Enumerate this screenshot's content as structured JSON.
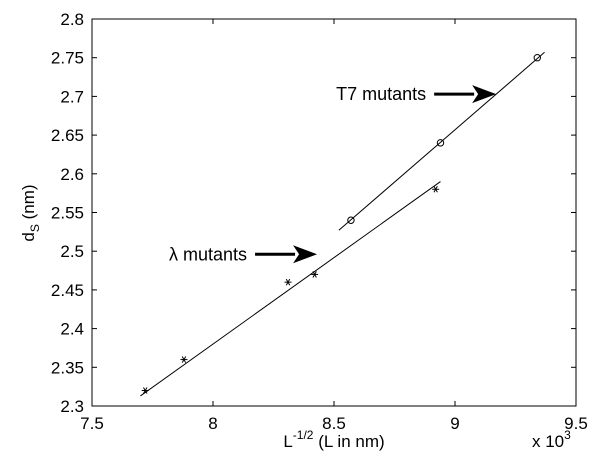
{
  "chart_data": {
    "type": "scatter",
    "xlabel": {
      "base": "L",
      "sup": "-1/2",
      "rest": " (L in nm)"
    },
    "ylabel": {
      "base": "d",
      "sub": "S",
      "rest": " (nm)"
    },
    "x_multiplier": {
      "base": "x 10",
      "sup": "3"
    },
    "xlim": [
      7.5,
      9.5
    ],
    "ylim": [
      2.3,
      2.8
    ],
    "x_ticks": [
      "7.5",
      "8",
      "8.5",
      "9",
      "9.5"
    ],
    "y_ticks": [
      "2.3",
      "2.35",
      "2.4",
      "2.45",
      "2.5",
      "2.55",
      "2.6",
      "2.65",
      "2.7",
      "2.75",
      "2.8"
    ],
    "grid": false,
    "series": [
      {
        "name": "T7 mutants",
        "marker": "circle",
        "x": [
          8.57,
          8.94,
          9.34
        ],
        "y": [
          2.54,
          2.64,
          2.75
        ],
        "fit_line": {
          "x": [
            8.52,
            9.37
          ],
          "y": [
            2.527,
            2.757
          ]
        }
      },
      {
        "name": "λ mutants",
        "marker": "star",
        "x": [
          7.72,
          7.88,
          8.31,
          8.42,
          8.92
        ],
        "y": [
          2.32,
          2.36,
          2.46,
          2.47,
          2.58
        ],
        "fit_line": {
          "x": [
            7.7,
            8.94
          ],
          "y": [
            2.313,
            2.59
          ]
        }
      }
    ],
    "annotations": [
      {
        "text": "T7 mutants",
        "arrow_to": [
          9.17,
          2.703
        ]
      },
      {
        "text": "λ mutants",
        "arrow_to": [
          8.43,
          2.496
        ]
      }
    ]
  }
}
